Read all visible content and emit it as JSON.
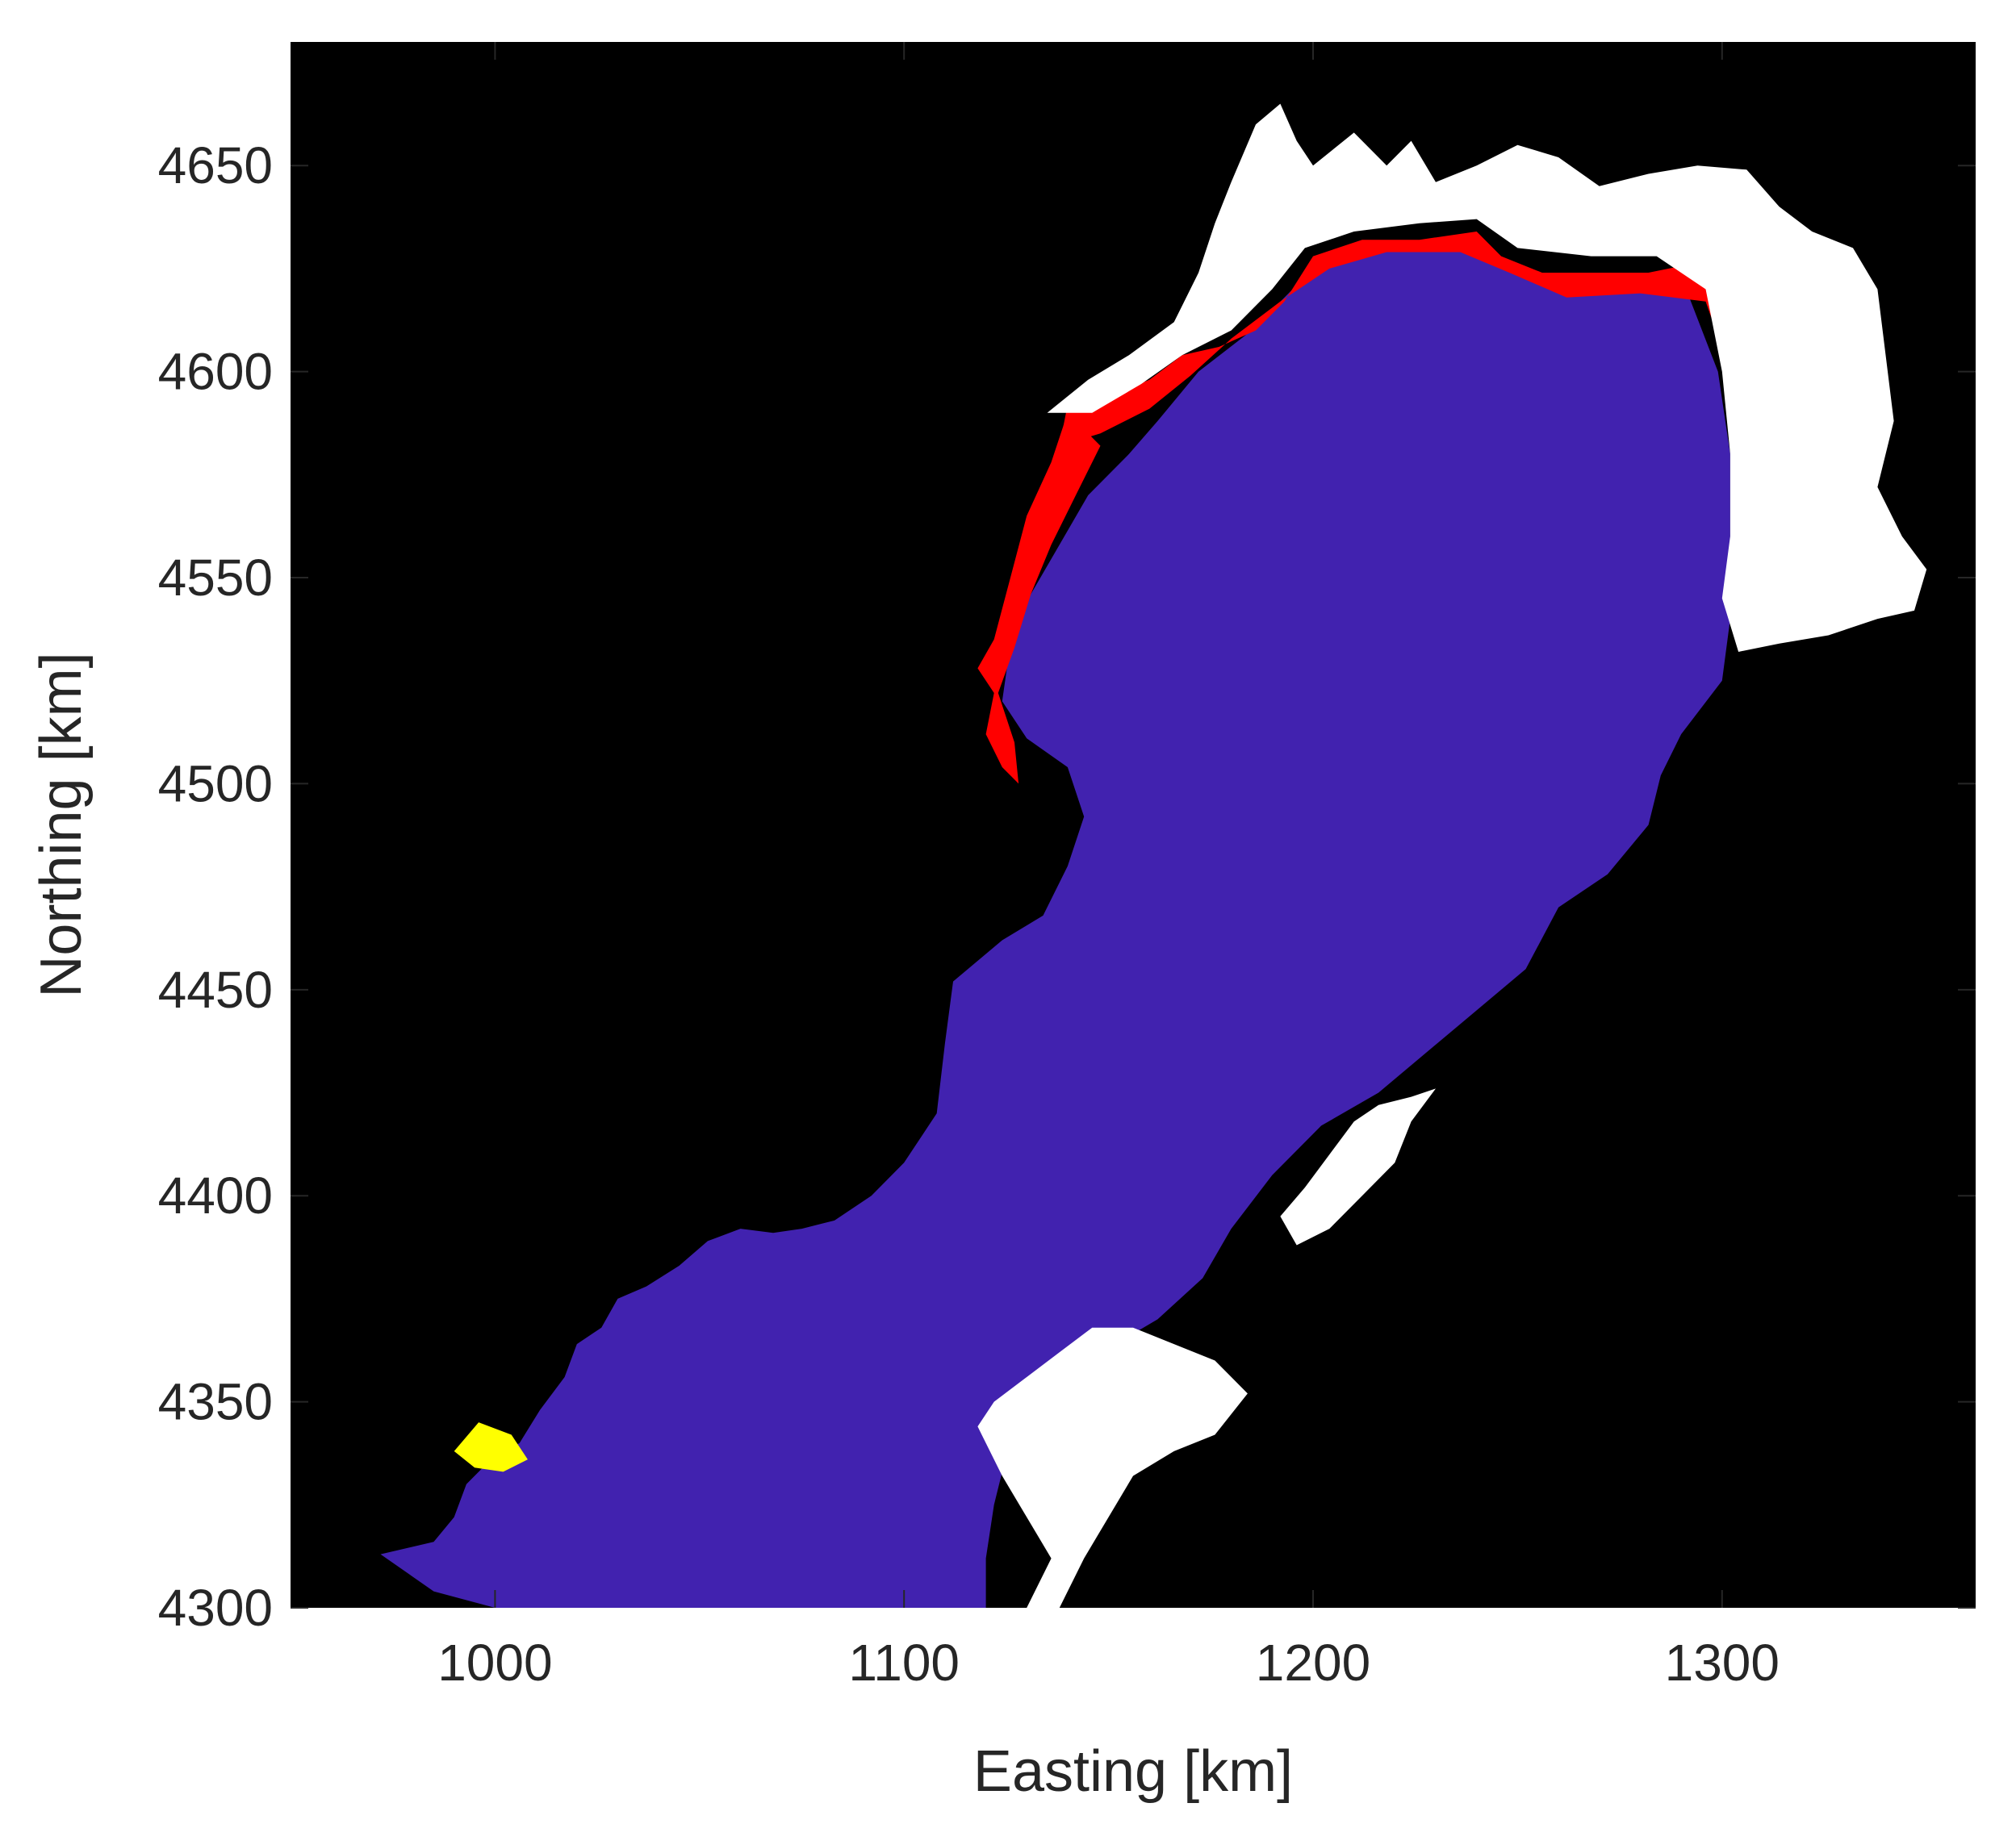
{
  "chart_data": {
    "type": "heatmap",
    "title": "",
    "xlabel": "Easting [km]",
    "ylabel": "Northing [km]",
    "xlim": [
      950,
      1362
    ],
    "ylim": [
      4300,
      4680
    ],
    "xticks": [
      1000,
      1100,
      1200,
      1300
    ],
    "yticks": [
      4300,
      4350,
      4400,
      4450,
      4500,
      4550,
      4600,
      4650
    ],
    "grid": false,
    "legend": "none",
    "colors": {
      "background": "#000000",
      "main_region": "#4122AF",
      "margin_red": "#FF0000",
      "margin_white": "#FFFFFF",
      "margin_yellow": "#FFFF00"
    },
    "regions": [
      {
        "id": "main",
        "color": "main_region",
        "points": [
          [
            1052,
            4300
          ],
          [
            1000,
            4300
          ],
          [
            985,
            4304
          ],
          [
            972,
            4313
          ],
          [
            985,
            4316
          ],
          [
            990,
            4322
          ],
          [
            993,
            4330
          ],
          [
            999,
            4336
          ],
          [
            1006,
            4340
          ],
          [
            1011,
            4348
          ],
          [
            1017,
            4356
          ],
          [
            1020,
            4364
          ],
          [
            1026,
            4368
          ],
          [
            1030,
            4375
          ],
          [
            1037,
            4378
          ],
          [
            1045,
            4383
          ],
          [
            1052,
            4389
          ],
          [
            1060,
            4392
          ],
          [
            1068,
            4391
          ],
          [
            1075,
            4392
          ],
          [
            1083,
            4394
          ],
          [
            1092,
            4400
          ],
          [
            1100,
            4408
          ],
          [
            1108,
            4420
          ],
          [
            1110,
            4437
          ],
          [
            1112,
            4452
          ],
          [
            1124,
            4462
          ],
          [
            1134,
            4468
          ],
          [
            1140,
            4480
          ],
          [
            1144,
            4492
          ],
          [
            1140,
            4504
          ],
          [
            1130,
            4511
          ],
          [
            1124,
            4520
          ],
          [
            1126,
            4534
          ],
          [
            1131,
            4546
          ],
          [
            1138,
            4558
          ],
          [
            1145,
            4570
          ],
          [
            1155,
            4580
          ],
          [
            1162,
            4588
          ],
          [
            1172,
            4600
          ],
          [
            1185,
            4610
          ],
          [
            1195,
            4620
          ],
          [
            1205,
            4626
          ],
          [
            1218,
            4630
          ],
          [
            1236,
            4630
          ],
          [
            1248,
            4625
          ],
          [
            1260,
            4620
          ],
          [
            1278,
            4620
          ],
          [
            1292,
            4618
          ],
          [
            1299,
            4600
          ],
          [
            1302,
            4580
          ],
          [
            1302,
            4560
          ],
          [
            1302,
            4540
          ],
          [
            1300,
            4525
          ],
          [
            1290,
            4512
          ],
          [
            1285,
            4502
          ],
          [
            1282,
            4490
          ],
          [
            1272,
            4478
          ],
          [
            1260,
            4470
          ],
          [
            1252,
            4455
          ],
          [
            1240,
            4445
          ],
          [
            1228,
            4435
          ],
          [
            1216,
            4425
          ],
          [
            1202,
            4417
          ],
          [
            1190,
            4405
          ],
          [
            1180,
            4392
          ],
          [
            1173,
            4380
          ],
          [
            1162,
            4370
          ],
          [
            1150,
            4363
          ],
          [
            1140,
            4354
          ],
          [
            1130,
            4345
          ],
          [
            1125,
            4337
          ],
          [
            1122,
            4325
          ],
          [
            1120,
            4312
          ],
          [
            1120,
            4300
          ]
        ]
      },
      {
        "id": "red-north",
        "color": "margin_red",
        "points": [
          [
            1140,
            4592
          ],
          [
            1150,
            4594
          ],
          [
            1160,
            4598
          ],
          [
            1168,
            4604
          ],
          [
            1177,
            4606
          ],
          [
            1186,
            4610
          ],
          [
            1193,
            4617
          ],
          [
            1200,
            4628
          ],
          [
            1212,
            4632
          ],
          [
            1226,
            4632
          ],
          [
            1240,
            4634
          ],
          [
            1246,
            4628
          ],
          [
            1256,
            4624
          ],
          [
            1268,
            4624
          ],
          [
            1282,
            4624
          ],
          [
            1292,
            4626
          ],
          [
            1302,
            4628
          ],
          [
            1305,
            4620
          ],
          [
            1312,
            4604
          ],
          [
            1318,
            4590
          ],
          [
            1324,
            4570
          ],
          [
            1311,
            4572
          ],
          [
            1305,
            4582
          ],
          [
            1302,
            4600
          ],
          [
            1296,
            4617
          ],
          [
            1280,
            4619
          ],
          [
            1262,
            4618
          ],
          [
            1248,
            4624
          ],
          [
            1236,
            4629
          ],
          [
            1218,
            4629
          ],
          [
            1204,
            4625
          ],
          [
            1192,
            4617
          ],
          [
            1180,
            4608
          ],
          [
            1170,
            4599
          ],
          [
            1160,
            4591
          ],
          [
            1148,
            4585
          ],
          [
            1138,
            4582
          ]
        ]
      },
      {
        "id": "red-northeast",
        "color": "margin_red",
        "points": [
          [
            1304,
            4627
          ],
          [
            1311,
            4627
          ],
          [
            1318,
            4612
          ],
          [
            1324,
            4596
          ],
          [
            1328,
            4583
          ],
          [
            1334,
            4566
          ],
          [
            1320,
            4567
          ],
          [
            1312,
            4574
          ],
          [
            1307,
            4586
          ],
          [
            1304,
            4600
          ]
        ]
      },
      {
        "id": "red-west",
        "color": "margin_red",
        "points": [
          [
            1140,
            4590
          ],
          [
            1136,
            4578
          ],
          [
            1130,
            4565
          ],
          [
            1126,
            4550
          ],
          [
            1122,
            4535
          ],
          [
            1118,
            4528
          ],
          [
            1122,
            4522
          ],
          [
            1120,
            4512
          ],
          [
            1124,
            4504
          ],
          [
            1128,
            4500
          ],
          [
            1127,
            4510
          ],
          [
            1123,
            4522
          ],
          [
            1127,
            4533
          ],
          [
            1131,
            4546
          ],
          [
            1136,
            4558
          ],
          [
            1142,
            4570
          ],
          [
            1148,
            4582
          ]
        ]
      },
      {
        "id": "white-north",
        "color": "margin_white",
        "points": [
          [
            1135,
            4590
          ],
          [
            1145,
            4598
          ],
          [
            1155,
            4604
          ],
          [
            1166,
            4612
          ],
          [
            1172,
            4624
          ],
          [
            1176,
            4636
          ],
          [
            1180,
            4646
          ],
          [
            1186,
            4660
          ],
          [
            1192,
            4665
          ],
          [
            1196,
            4656
          ],
          [
            1200,
            4650
          ],
          [
            1210,
            4658
          ],
          [
            1218,
            4650
          ],
          [
            1224,
            4656
          ],
          [
            1230,
            4646
          ],
          [
            1240,
            4650
          ],
          [
            1250,
            4655
          ],
          [
            1260,
            4652
          ],
          [
            1270,
            4645
          ],
          [
            1282,
            4648
          ],
          [
            1294,
            4650
          ],
          [
            1306,
            4649
          ],
          [
            1314,
            4640
          ],
          [
            1322,
            4634
          ],
          [
            1332,
            4630
          ],
          [
            1338,
            4620
          ],
          [
            1340,
            4604
          ],
          [
            1342,
            4588
          ],
          [
            1338,
            4572
          ],
          [
            1344,
            4560
          ],
          [
            1350,
            4552
          ],
          [
            1347,
            4542
          ],
          [
            1338,
            4540
          ],
          [
            1326,
            4536
          ],
          [
            1314,
            4534
          ],
          [
            1304,
            4532
          ],
          [
            1300,
            4545
          ],
          [
            1302,
            4560
          ],
          [
            1302,
            4580
          ],
          [
            1300,
            4600
          ],
          [
            1296,
            4620
          ],
          [
            1284,
            4628
          ],
          [
            1268,
            4628
          ],
          [
            1250,
            4630
          ],
          [
            1240,
            4637
          ],
          [
            1226,
            4636
          ],
          [
            1210,
            4634
          ],
          [
            1198,
            4630
          ],
          [
            1190,
            4620
          ],
          [
            1180,
            4610
          ],
          [
            1168,
            4604
          ],
          [
            1158,
            4597
          ],
          [
            1146,
            4590
          ]
        ]
      },
      {
        "id": "white-south",
        "color": "margin_white",
        "points": [
          [
            1118,
            4344
          ],
          [
            1124,
            4332
          ],
          [
            1130,
            4322
          ],
          [
            1136,
            4312
          ],
          [
            1130,
            4300
          ],
          [
            1138,
            4300
          ],
          [
            1144,
            4312
          ],
          [
            1150,
            4322
          ],
          [
            1156,
            4332
          ],
          [
            1166,
            4338
          ],
          [
            1176,
            4342
          ],
          [
            1184,
            4352
          ],
          [
            1176,
            4360
          ],
          [
            1166,
            4364
          ],
          [
            1156,
            4368
          ],
          [
            1146,
            4368
          ],
          [
            1138,
            4362
          ],
          [
            1130,
            4356
          ],
          [
            1122,
            4350
          ]
        ]
      },
      {
        "id": "white-east",
        "color": "margin_white",
        "points": [
          [
            1192,
            4395
          ],
          [
            1198,
            4402
          ],
          [
            1204,
            4410
          ],
          [
            1210,
            4418
          ],
          [
            1216,
            4422
          ],
          [
            1224,
            4424
          ],
          [
            1230,
            4426
          ],
          [
            1224,
            4418
          ],
          [
            1220,
            4408
          ],
          [
            1212,
            4400
          ],
          [
            1204,
            4392
          ],
          [
            1196,
            4388
          ]
        ]
      },
      {
        "id": "yellow-patch",
        "color": "margin_yellow",
        "points": [
          [
            990,
            4338
          ],
          [
            996,
            4345
          ],
          [
            1004,
            4342
          ],
          [
            1008,
            4336
          ],
          [
            1002,
            4333
          ],
          [
            995,
            4334
          ]
        ]
      }
    ]
  }
}
